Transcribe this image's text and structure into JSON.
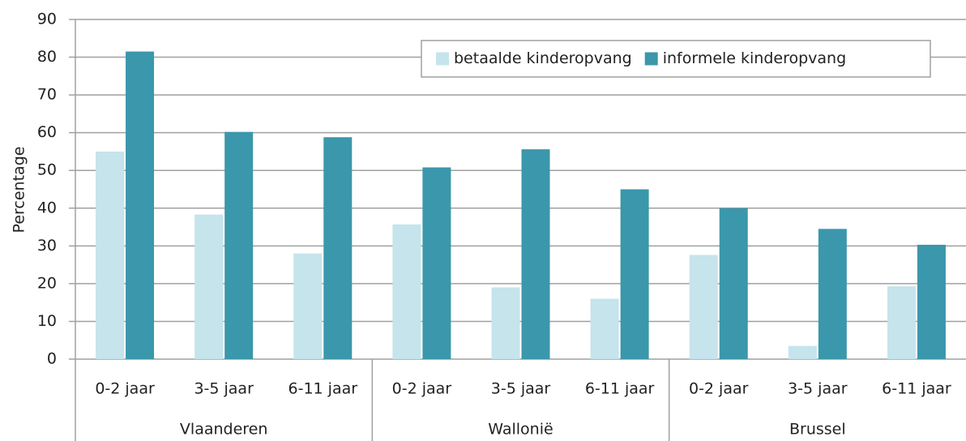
{
  "chart_data": {
    "type": "bar",
    "y_label": "Percentage",
    "categories": [
      "0-2 jaar",
      "3-5 jaar",
      "6-11 jaar",
      "0-2 jaar",
      "3-5 jaar",
      "6-11 jaar",
      "0-2 jaar",
      "3-5 jaar",
      "6-11 jaar"
    ],
    "groups": [
      "Vlaanderen",
      "Wallonië",
      "Brussel"
    ],
    "series": [
      {
        "name": "betaalde kinderopvang",
        "color": "#c5e4ec",
        "values": [
          55,
          38.3,
          28,
          35.7,
          19,
          16,
          27.6,
          3.5,
          19.3
        ]
      },
      {
        "name": "informele kinderopvang",
        "color": "#3b97ab",
        "values": [
          81.5,
          60.2,
          58.8,
          50.8,
          55.6,
          45,
          40,
          34.5,
          30.3
        ]
      }
    ],
    "ylim": [
      0,
      90
    ],
    "yticks": [
      0,
      10,
      20,
      30,
      40,
      50,
      60,
      70,
      80,
      90
    ],
    "grid": true,
    "legend": "top-right"
  }
}
